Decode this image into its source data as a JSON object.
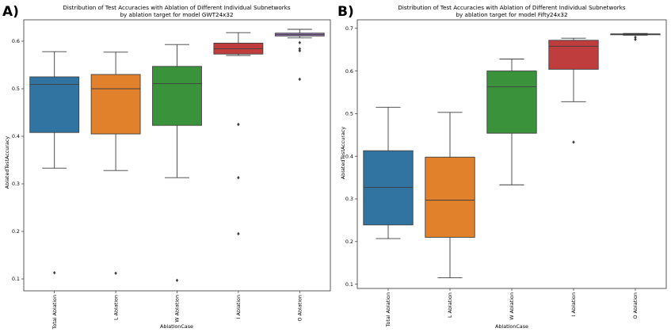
{
  "chart_data": [
    {
      "panel_label": "A)",
      "type": "box",
      "title": "Distribution of Test Accuracies with Ablation of Different Individual Subnetworks",
      "subtitle": "by ablation target for model GWT24x32",
      "xlabel": "AblationCase",
      "ylabel": "AblatedTestAccuracy",
      "ylim": [
        0.075,
        0.645
      ],
      "yticks": [
        0.1,
        0.2,
        0.3,
        0.4,
        0.5,
        0.6
      ],
      "ytick_labels": [
        "0.1",
        "0.2",
        "0.3",
        "0.4",
        "0.5",
        "0.6"
      ],
      "categories": [
        "Total Ablation",
        "L Ablation",
        "W Ablation",
        "I Ablation",
        "O Ablation"
      ],
      "boxes": [
        {
          "category": "Total Ablation",
          "color": "#3274a1",
          "whislo": 0.333,
          "q1": 0.408,
          "med": 0.509,
          "q3": 0.525,
          "whishi": 0.578,
          "fliers": [
            0.113
          ]
        },
        {
          "category": "L Ablation",
          "color": "#e1812c",
          "whislo": 0.328,
          "q1": 0.405,
          "med": 0.5,
          "q3": 0.53,
          "whishi": 0.577,
          "fliers": [
            0.112
          ]
        },
        {
          "category": "W Ablation",
          "color": "#3a923a",
          "whislo": 0.313,
          "q1": 0.423,
          "med": 0.511,
          "q3": 0.547,
          "whishi": 0.593,
          "fliers": [
            0.097
          ]
        },
        {
          "category": "I Ablation",
          "color": "#c03d3e",
          "whislo": 0.57,
          "q1": 0.573,
          "med": 0.584,
          "q3": 0.596,
          "whishi": 0.618,
          "fliers": [
            0.425,
            0.313,
            0.195
          ]
        },
        {
          "category": "O Ablation",
          "color": "#9372b2",
          "whislo": 0.607,
          "q1": 0.611,
          "med": 0.614,
          "q3": 0.617,
          "whishi": 0.625,
          "fliers": [
            0.597,
            0.584,
            0.58,
            0.52
          ]
        }
      ]
    },
    {
      "panel_label": "B)",
      "type": "box",
      "title": "Distribution of Test Accuracies with Ablation of Different Individual Subnetworks",
      "subtitle": "by ablation target for model Fifty24x32",
      "xlabel": "AblationCase",
      "ylabel": "AblatedTestAccuracy",
      "ylim": [
        0.09,
        0.72
      ],
      "yticks": [
        0.1,
        0.2,
        0.3,
        0.4,
        0.5,
        0.6,
        0.7
      ],
      "ytick_labels": [
        "0.1",
        "0.2",
        "0.3",
        "0.4",
        "0.5",
        "0.6",
        "0.7"
      ],
      "categories": [
        "Total Ablation",
        "L Ablation",
        "W Ablation",
        "I Ablation",
        "O Ablation"
      ],
      "boxes": [
        {
          "category": "Total Ablation",
          "color": "#3274a1",
          "whislo": 0.207,
          "q1": 0.239,
          "med": 0.327,
          "q3": 0.413,
          "whishi": 0.515,
          "fliers": []
        },
        {
          "category": "L Ablation",
          "color": "#e1812c",
          "whislo": 0.115,
          "q1": 0.21,
          "med": 0.297,
          "q3": 0.398,
          "whishi": 0.503,
          "fliers": []
        },
        {
          "category": "W Ablation",
          "color": "#3a923a",
          "whislo": 0.333,
          "q1": 0.454,
          "med": 0.563,
          "q3": 0.6,
          "whishi": 0.628,
          "fliers": []
        },
        {
          "category": "I Ablation",
          "color": "#c03d3e",
          "whislo": 0.528,
          "q1": 0.604,
          "med": 0.658,
          "q3": 0.672,
          "whishi": 0.677,
          "fliers": [
            0.433
          ]
        },
        {
          "category": "O Ablation",
          "color": "#9372b2",
          "whislo": 0.684,
          "q1": 0.685,
          "med": 0.686,
          "q3": 0.687,
          "whishi": 0.688,
          "fliers": [
            0.679,
            0.674
          ]
        }
      ]
    }
  ]
}
